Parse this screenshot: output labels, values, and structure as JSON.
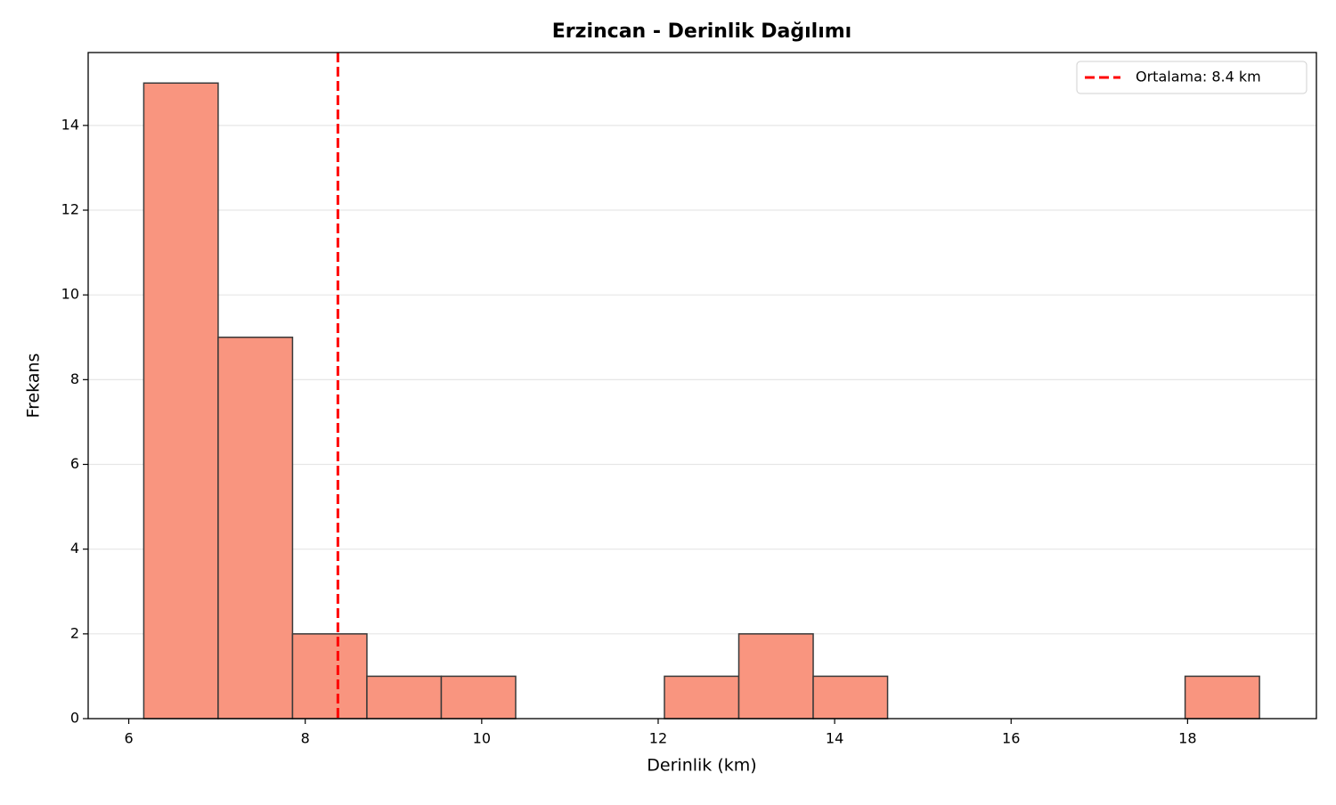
{
  "chart_data": {
    "type": "histogram",
    "title": "Erzincan - Derinlik Dağılımı",
    "x_label": "Derinlik (km)",
    "y_label": "Frekans",
    "bins": [
      6.17,
      7.013,
      7.856,
      8.699,
      9.542,
      10.385,
      11.228,
      12.071,
      12.914,
      13.757,
      14.6,
      15.443,
      16.286,
      17.129,
      17.972,
      18.815
    ],
    "values": [
      15,
      9,
      2,
      1,
      1,
      0,
      0,
      1,
      2,
      1,
      0,
      0,
      0,
      0,
      1
    ],
    "color": "#f9957f",
    "edge_color": "#3a3a3a",
    "xlim": [
      5.54,
      19.46
    ],
    "ylim": [
      0,
      15.72
    ],
    "xticks": [
      6,
      8,
      10,
      12,
      14,
      16,
      18
    ],
    "yticks": [
      0,
      2,
      4,
      6,
      8,
      10,
      12,
      14
    ],
    "grid": true,
    "reference_line": {
      "value": 8.37,
      "label": "Ortalama: 8.4 km",
      "color": "#ff0000"
    },
    "legend": "upper right"
  }
}
